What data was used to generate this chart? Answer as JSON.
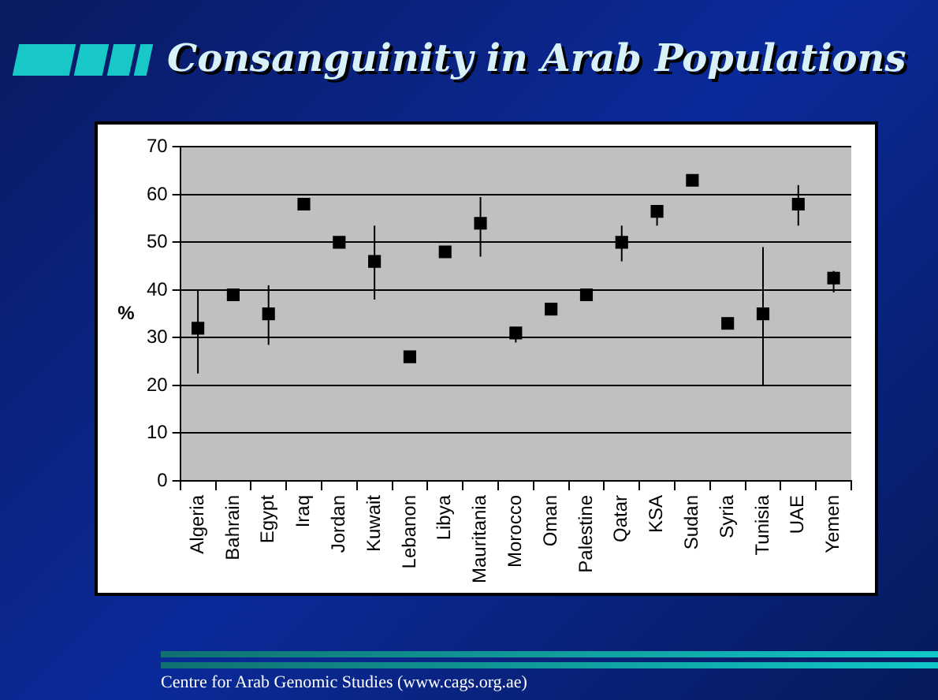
{
  "chart_data": {
    "type": "scatter",
    "title": "Consanguinity in Arab Populations",
    "ylabel": "%",
    "categories": [
      "Algeria",
      "Bahrain",
      "Egypt",
      "Iraq",
      "Jordan",
      "Kuwait",
      "Lebanon",
      "Libya",
      "Mauritania",
      "Morocco",
      "Oman",
      "Palestine",
      "Qatar",
      "KSA",
      "Sudan",
      "Syria",
      "Tunisia",
      "UAE",
      "Yemen"
    ],
    "series": [
      {
        "color": "#000000",
        "values": [
          32,
          39,
          35,
          58,
          50,
          46,
          26,
          48,
          54,
          31,
          36,
          39,
          50,
          56.5,
          63,
          33,
          35,
          58,
          42.5
        ],
        "errors": [
          [
            22.5,
            40
          ],
          null,
          [
            28.5,
            41
          ],
          null,
          null,
          [
            38,
            53.5
          ],
          null,
          null,
          [
            47,
            59.5
          ],
          [
            29,
            32
          ],
          null,
          null,
          [
            46,
            53.5
          ],
          [
            53.5,
            56.5
          ],
          null,
          null,
          [
            20,
            49
          ],
          [
            53.5,
            62
          ],
          [
            39.5,
            44
          ]
        ]
      }
    ],
    "ylim": [
      0,
      70
    ],
    "yticks": [
      0,
      10,
      20,
      30,
      40,
      50,
      60,
      70
    ],
    "grid": "y",
    "marker": "square",
    "legend": false,
    "annotations": [
      "Centre for Arab Genomic Studies (www.cags.org.ae)"
    ]
  }
}
